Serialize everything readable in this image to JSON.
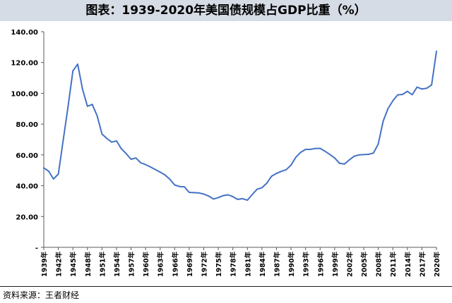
{
  "title": "图表：1939-2020年美国债规模占GDP比重（%）",
  "source": "资料来源：王者财经",
  "colors": {
    "line": "#4472c4",
    "title_bg": "#d6dce5",
    "axis": "#595959",
    "text": "#000000"
  },
  "chart_data": {
    "type": "line",
    "title": "图表：1939-2020年美国债规模占GDP比重（%）",
    "xlabel": "",
    "ylabel": "",
    "ylim": [
      0,
      140
    ],
    "grid": false,
    "y_ticks": [
      {
        "value": 0,
        "label": "-"
      },
      {
        "value": 20,
        "label": "20.00"
      },
      {
        "value": 40,
        "label": "40.00"
      },
      {
        "value": 60,
        "label": "60.00"
      },
      {
        "value": 80,
        "label": "80.00"
      },
      {
        "value": 100,
        "label": "100.00"
      },
      {
        "value": 120,
        "label": "120.00"
      },
      {
        "value": 140,
        "label": "140.00"
      }
    ],
    "x_tick_labels": [
      "1939年",
      "1942年",
      "1945年",
      "1948年",
      "1951年",
      "1954年",
      "1957年",
      "1960年",
      "1963年",
      "1966年",
      "1969年",
      "1972年",
      "1975年",
      "1978年",
      "1981年",
      "1984年",
      "1987年",
      "1990年",
      "1993年",
      "1996年",
      "1999年",
      "2002年",
      "2005年",
      "2008年",
      "2011年",
      "2014年",
      "2017年",
      "2020年"
    ],
    "series": [
      {
        "name": "",
        "x": [
          1939,
          1940,
          1941,
          1942,
          1943,
          1944,
          1945,
          1946,
          1947,
          1948,
          1949,
          1950,
          1951,
          1952,
          1953,
          1954,
          1955,
          1956,
          1957,
          1958,
          1959,
          1960,
          1961,
          1962,
          1963,
          1964,
          1965,
          1966,
          1967,
          1968,
          1969,
          1970,
          1971,
          1972,
          1973,
          1974,
          1975,
          1976,
          1977,
          1978,
          1979,
          1980,
          1981,
          1982,
          1983,
          1984,
          1985,
          1986,
          1987,
          1988,
          1989,
          1990,
          1991,
          1992,
          1993,
          1994,
          1995,
          1996,
          1997,
          1998,
          1999,
          2000,
          2001,
          2002,
          2003,
          2004,
          2005,
          2006,
          2007,
          2008,
          2009,
          2010,
          2011,
          2012,
          2013,
          2014,
          2015,
          2016,
          2017,
          2018,
          2019,
          2020
        ],
        "values": [
          51.6,
          49.4,
          44.4,
          47.6,
          69.6,
          91.2,
          114.5,
          118.9,
          102.6,
          91.6,
          92.8,
          85.5,
          73.6,
          70.7,
          68.3,
          69.1,
          64.0,
          60.8,
          57.2,
          58.0,
          54.9,
          53.7,
          52.2,
          50.5,
          48.8,
          47.0,
          44.2,
          40.5,
          39.5,
          39.3,
          35.7,
          35.5,
          35.3,
          34.6,
          33.3,
          31.4,
          32.3,
          33.6,
          34.1,
          32.9,
          31.1,
          31.6,
          30.6,
          34.3,
          37.7,
          38.7,
          41.7,
          46.2,
          48.0,
          49.3,
          50.4,
          53.4,
          58.5,
          61.7,
          63.6,
          63.6,
          64.2,
          64.3,
          62.4,
          60.3,
          58.0,
          54.6,
          54.1,
          56.7,
          59.1,
          60.0,
          60.2,
          60.4,
          61.2,
          67.1,
          81.9,
          90.1,
          95.1,
          99.0,
          99.3,
          101.3,
          99.1,
          104.0,
          102.8,
          103.3,
          105.4,
          127.3
        ]
      }
    ]
  }
}
